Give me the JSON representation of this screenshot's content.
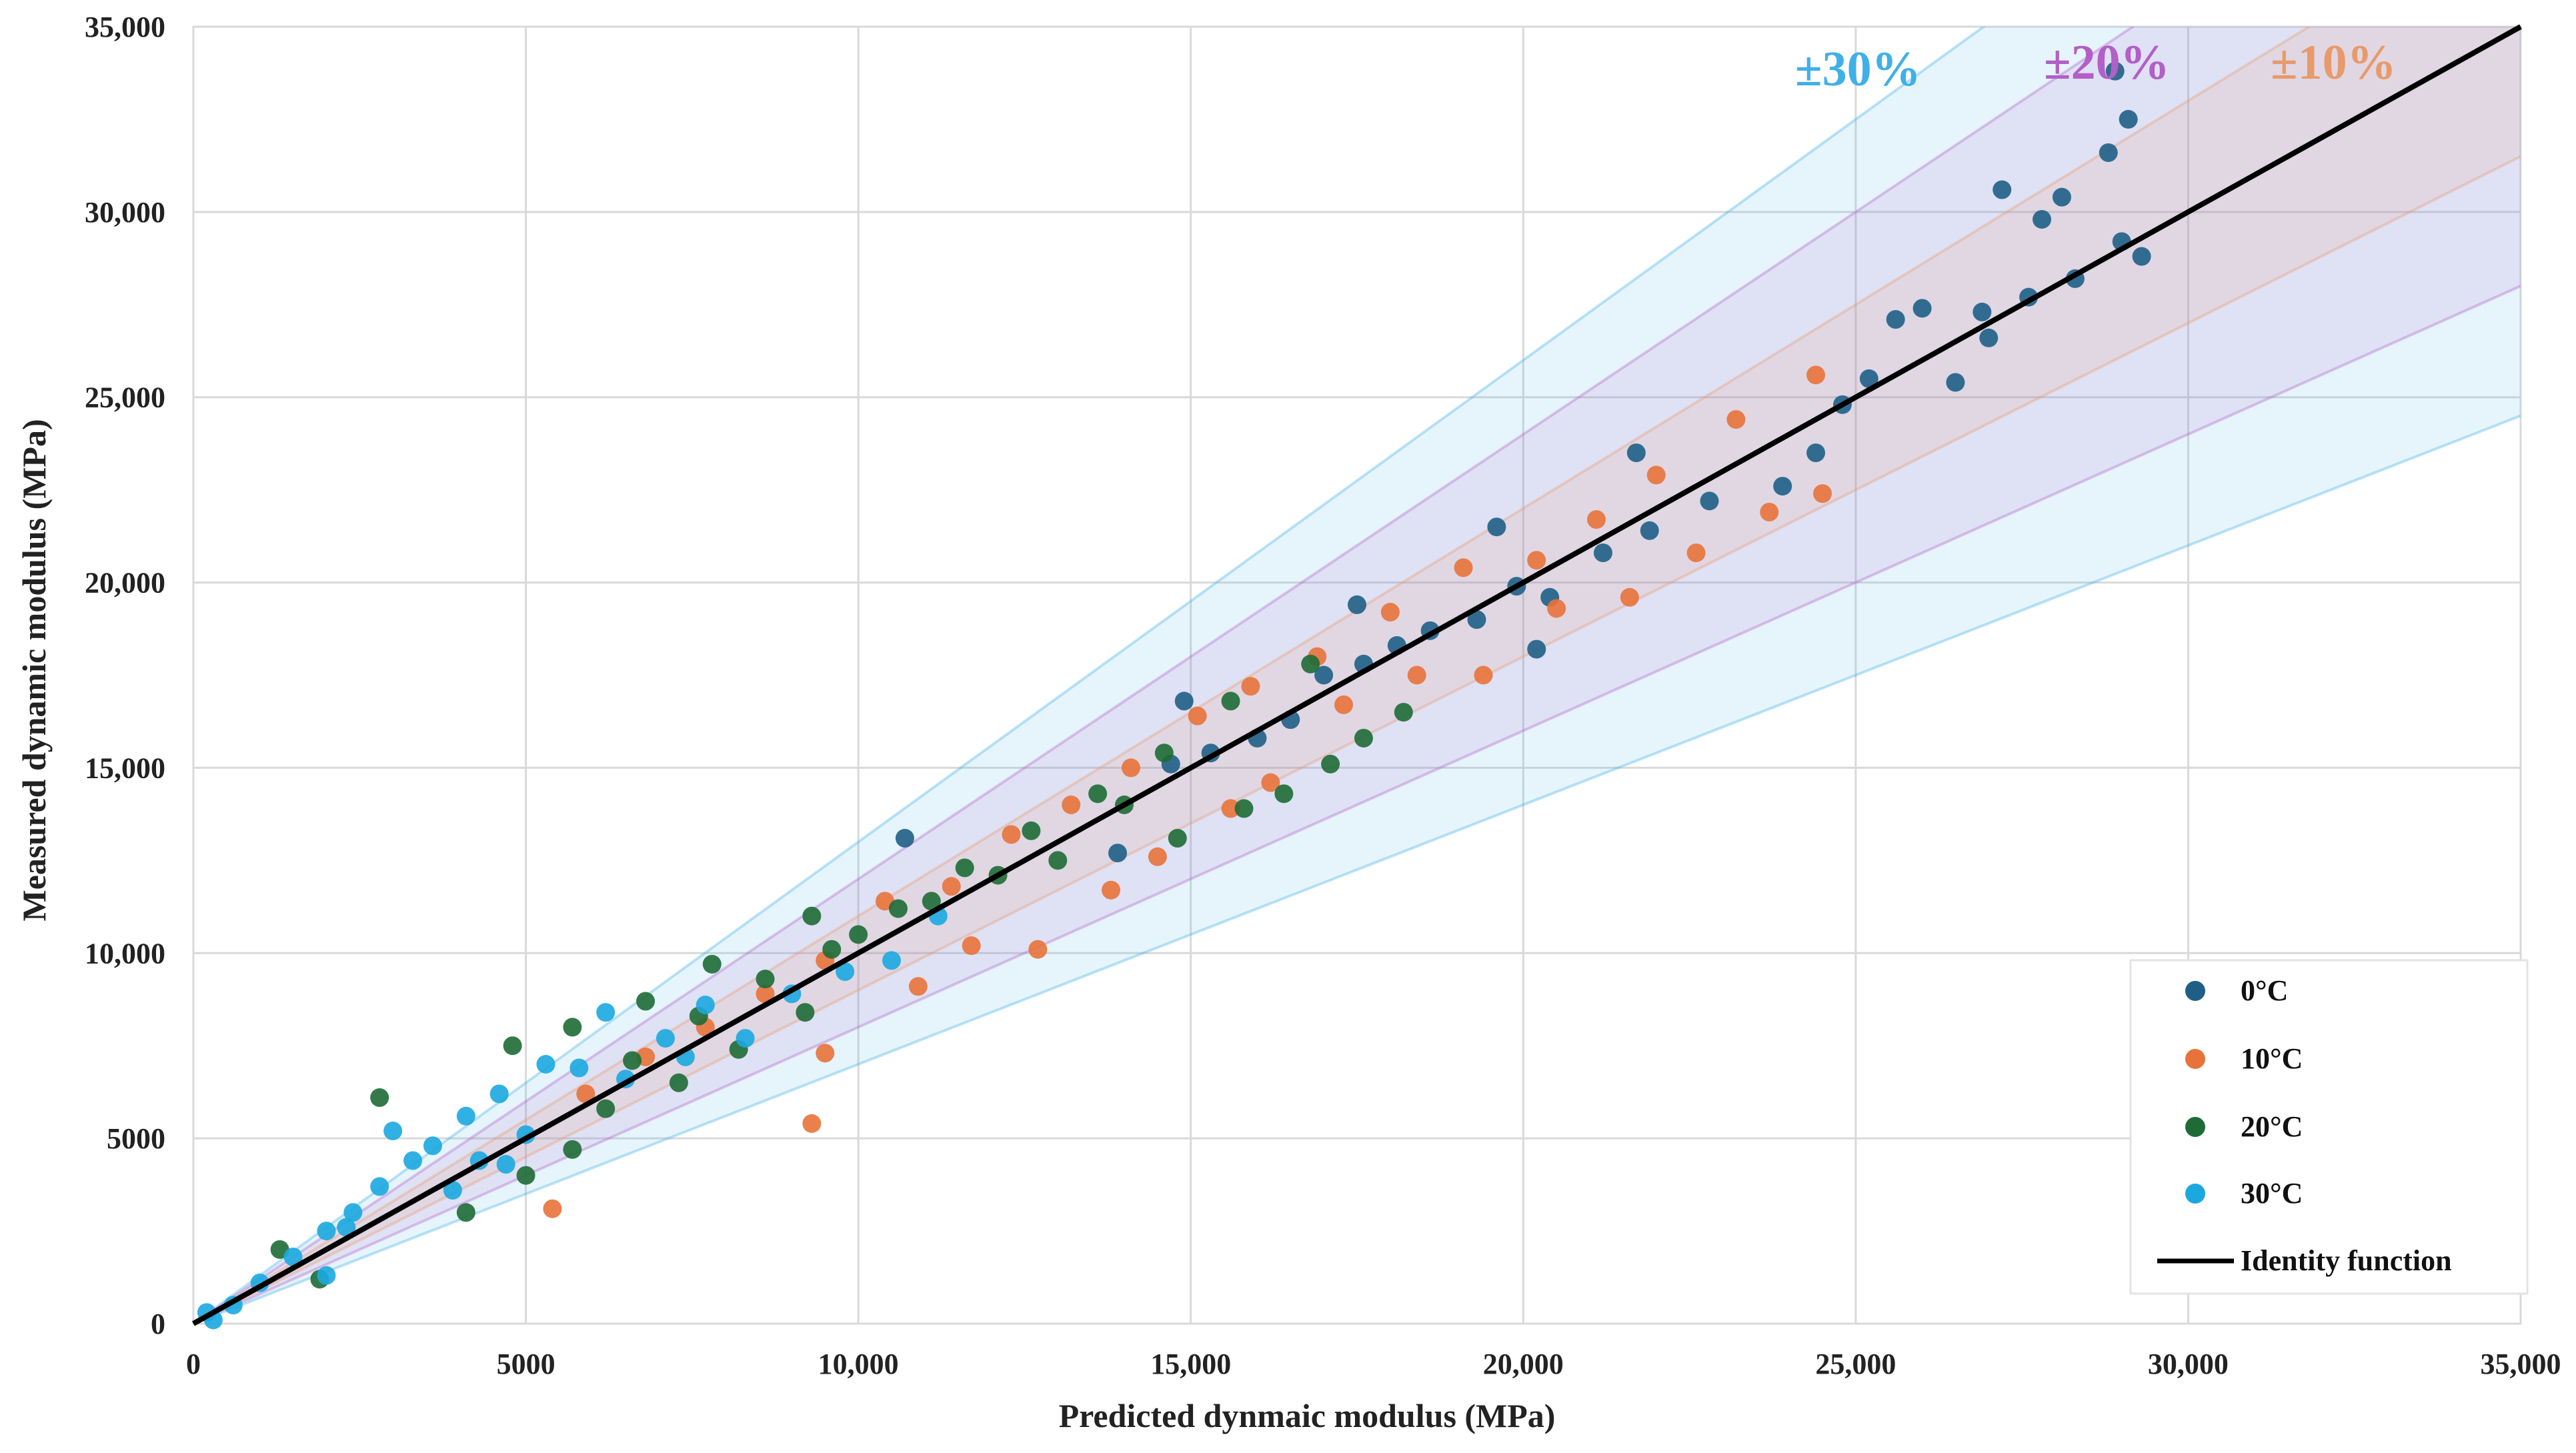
{
  "chart_data": {
    "type": "scatter",
    "title": "",
    "xlabel": "Predicted dynmaic modulus (MPa)",
    "ylabel": "Measured dynamic modulus (MPa)",
    "xlim": [
      0,
      35000
    ],
    "ylim": [
      0,
      35000
    ],
    "grid": true,
    "x_ticks": [
      0,
      5000,
      10000,
      15000,
      20000,
      25000,
      30000,
      35000
    ],
    "y_ticks": [
      0,
      5000,
      10000,
      15000,
      20000,
      25000,
      30000,
      35000
    ],
    "x_tick_labels": [
      "0",
      "5000",
      "10,000",
      "15,000",
      "20,000",
      "25,000",
      "30,000",
      "35,000"
    ],
    "y_tick_labels": [
      "0",
      "5000",
      "10,000",
      "15,000",
      "20,000",
      "25,000",
      "30,000",
      "35,000"
    ],
    "bands": [
      {
        "label": "±30%",
        "factor": 0.3,
        "color": "#3fb0e8"
      },
      {
        "label": "±20%",
        "factor": 0.2,
        "color": "#b25fc8"
      },
      {
        "label": "±10%",
        "factor": 0.1,
        "color": "#e89a6a"
      }
    ],
    "identity": {
      "name": "Identity function",
      "color": "#000000"
    },
    "legend_position": "bottom-right",
    "series": [
      {
        "name": "0°C",
        "color": "#1f5f86",
        "points": [
          [
            14900,
            16800
          ],
          [
            10700,
            13100
          ],
          [
            20200,
            18200
          ],
          [
            17500,
            19400
          ],
          [
            19600,
            21500
          ],
          [
            21700,
            23500
          ],
          [
            27200,
            30600
          ],
          [
            28900,
            33800
          ],
          [
            29100,
            32500
          ],
          [
            28800,
            31600
          ],
          [
            28100,
            30400
          ],
          [
            27800,
            29800
          ],
          [
            29000,
            29200
          ],
          [
            25600,
            27100
          ],
          [
            26000,
            27400
          ],
          [
            26500,
            25400
          ],
          [
            24400,
            23500
          ],
          [
            23900,
            22600
          ],
          [
            22800,
            22200
          ],
          [
            21900,
            21400
          ],
          [
            21200,
            20800
          ],
          [
            20400,
            19600
          ],
          [
            19900,
            19900
          ],
          [
            19300,
            19000
          ],
          [
            18600,
            18700
          ],
          [
            18100,
            18300
          ],
          [
            17600,
            17800
          ],
          [
            17000,
            17500
          ],
          [
            16500,
            16300
          ],
          [
            16000,
            15800
          ],
          [
            13900,
            12700
          ],
          [
            14700,
            15100
          ],
          [
            15300,
            15400
          ],
          [
            24800,
            24800
          ],
          [
            25200,
            25500
          ],
          [
            26900,
            27300
          ],
          [
            27600,
            27700
          ],
          [
            28300,
            28200
          ],
          [
            29300,
            28800
          ],
          [
            27000,
            26600
          ]
        ]
      },
      {
        "name": "10°C",
        "color": "#e8733a",
        "points": [
          [
            9300,
            5400
          ],
          [
            5400,
            3100
          ],
          [
            9500,
            7300
          ],
          [
            12700,
            10100
          ],
          [
            10900,
            9100
          ],
          [
            11700,
            10200
          ],
          [
            13800,
            11700
          ],
          [
            14500,
            12600
          ],
          [
            15600,
            13900
          ],
          [
            16200,
            14600
          ],
          [
            17300,
            16700
          ],
          [
            18400,
            17500
          ],
          [
            19400,
            17500
          ],
          [
            20500,
            19300
          ],
          [
            21600,
            19600
          ],
          [
            22600,
            20800
          ],
          [
            23700,
            21900
          ],
          [
            24500,
            22400
          ],
          [
            24400,
            25600
          ],
          [
            23200,
            24400
          ],
          [
            22000,
            22900
          ],
          [
            21100,
            21700
          ],
          [
            20200,
            20600
          ],
          [
            19100,
            20400
          ],
          [
            18000,
            19200
          ],
          [
            16900,
            18000
          ],
          [
            15900,
            17200
          ],
          [
            15100,
            16400
          ],
          [
            14100,
            15000
          ],
          [
            13200,
            14000
          ],
          [
            12300,
            13200
          ],
          [
            11400,
            11800
          ],
          [
            10400,
            11400
          ],
          [
            9500,
            9800
          ],
          [
            8600,
            8900
          ],
          [
            7700,
            8000
          ],
          [
            6800,
            7200
          ],
          [
            5900,
            6200
          ]
        ]
      },
      {
        "name": "20°C",
        "color": "#1e6b35",
        "points": [
          [
            2800,
            6100
          ],
          [
            4800,
            7500
          ],
          [
            1300,
            2000
          ],
          [
            1900,
            1200
          ],
          [
            4100,
            3000
          ],
          [
            5000,
            4000
          ],
          [
            5700,
            4700
          ],
          [
            5700,
            8000
          ],
          [
            6800,
            8700
          ],
          [
            7800,
            9700
          ],
          [
            9300,
            11000
          ],
          [
            10000,
            10500
          ],
          [
            11100,
            11400
          ],
          [
            12100,
            12100
          ],
          [
            13000,
            12500
          ],
          [
            14000,
            14000
          ],
          [
            14800,
            13100
          ],
          [
            15800,
            13900
          ],
          [
            16400,
            14300
          ],
          [
            17100,
            15100
          ],
          [
            17600,
            15800
          ],
          [
            18200,
            16500
          ],
          [
            16800,
            17800
          ],
          [
            15600,
            16800
          ],
          [
            14600,
            15400
          ],
          [
            13600,
            14300
          ],
          [
            12600,
            13300
          ],
          [
            11600,
            12300
          ],
          [
            10600,
            11200
          ],
          [
            9600,
            10100
          ],
          [
            8600,
            9300
          ],
          [
            7600,
            8300
          ],
          [
            6600,
            7100
          ],
          [
            6200,
            5800
          ],
          [
            7300,
            6500
          ],
          [
            8200,
            7400
          ],
          [
            9200,
            8400
          ]
        ]
      },
      {
        "name": "30°C",
        "color": "#1ba8e0",
        "points": [
          [
            6200,
            8400
          ],
          [
            3000,
            5200
          ],
          [
            4600,
            6200
          ],
          [
            4100,
            5600
          ],
          [
            3600,
            4800
          ],
          [
            3300,
            4400
          ],
          [
            2800,
            3700
          ],
          [
            2400,
            3000
          ],
          [
            2000,
            2500
          ],
          [
            1500,
            1800
          ],
          [
            2000,
            1300
          ],
          [
            5300,
            7000
          ],
          [
            5800,
            6900
          ],
          [
            7100,
            7700
          ],
          [
            7700,
            8600
          ],
          [
            3900,
            3600
          ],
          [
            4700,
            4300
          ],
          [
            1000,
            1100
          ],
          [
            600,
            500
          ],
          [
            300,
            100
          ],
          [
            200,
            300
          ],
          [
            8300,
            7700
          ],
          [
            9000,
            8900
          ],
          [
            9800,
            9500
          ],
          [
            10500,
            9800
          ],
          [
            11200,
            11000
          ],
          [
            6500,
            6600
          ],
          [
            7400,
            7200
          ],
          [
            5000,
            5100
          ],
          [
            4300,
            4400
          ],
          [
            2300,
            2600
          ]
        ]
      }
    ]
  }
}
